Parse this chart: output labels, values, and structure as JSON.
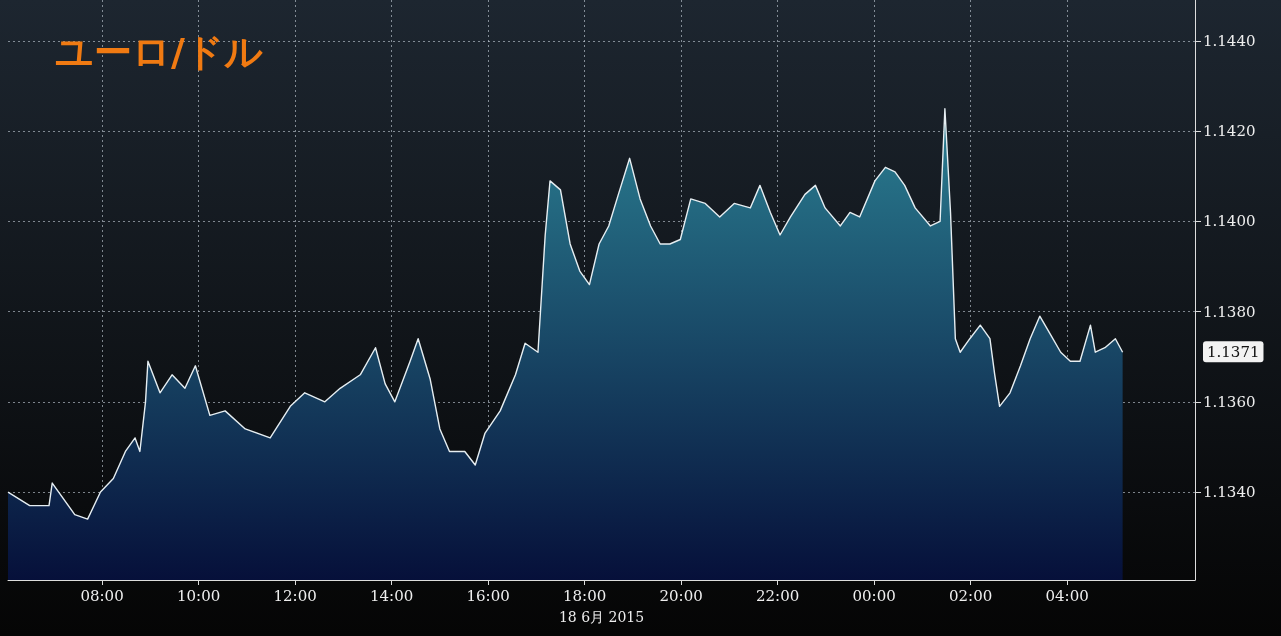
{
  "chart_data": {
    "type": "area",
    "title": "ユーロ/ドル",
    "xlabel": "18 6月 2015",
    "x": [
      "2015-06-17T06:03",
      "2015-06-17T06:30",
      "2015-06-17T06:54",
      "2015-06-17T06:58",
      "2015-06-17T07:26",
      "2015-06-17T07:42",
      "2015-06-17T07:58",
      "2015-06-17T08:14",
      "2015-06-17T08:29",
      "2015-06-17T08:41",
      "2015-06-17T08:47",
      "2015-06-17T08:54",
      "2015-06-17T08:57",
      "2015-06-17T09:12",
      "2015-06-17T09:27",
      "2015-06-17T09:43",
      "2015-06-17T09:56",
      "2015-06-17T10:14",
      "2015-06-17T10:33",
      "2015-06-17T10:58",
      "2015-06-17T11:29",
      "2015-06-17T11:54",
      "2015-06-17T12:12",
      "2015-06-17T12:37",
      "2015-06-17T12:56",
      "2015-06-17T13:21",
      "2015-06-17T13:40",
      "2015-06-17T13:52",
      "2015-06-17T14:04",
      "2015-06-17T14:23",
      "2015-06-17T14:33",
      "2015-06-17T14:48",
      "2015-06-17T15:00",
      "2015-06-17T15:12",
      "2015-06-17T15:31",
      "2015-06-17T15:44",
      "2015-06-17T15:56",
      "2015-06-17T16:15",
      "2015-06-17T16:34",
      "2015-06-17T16:46",
      "2015-06-17T17:02",
      "2015-06-17T17:11",
      "2015-06-17T17:17",
      "2015-06-17T17:30",
      "2015-06-17T17:42",
      "2015-06-17T17:54",
      "2015-06-17T18:06",
      "2015-06-17T18:18",
      "2015-06-17T18:30",
      "2015-06-17T18:42",
      "2015-06-17T18:56",
      "2015-06-17T19:09",
      "2015-06-17T19:22",
      "2015-06-17T19:34",
      "2015-06-17T19:46",
      "2015-06-17T19:59",
      "2015-06-17T20:12",
      "2015-06-17T20:30",
      "2015-06-17T20:48",
      "2015-06-17T21:06",
      "2015-06-17T21:26",
      "2015-06-17T21:38",
      "2015-06-17T21:51",
      "2015-06-17T22:03",
      "2015-06-17T22:16",
      "2015-06-17T22:34",
      "2015-06-17T22:47",
      "2015-06-17T22:59",
      "2015-06-17T23:18",
      "2015-06-17T23:30",
      "2015-06-17T23:42",
      "2015-06-18T00:01",
      "2015-06-18T00:14",
      "2015-06-18T00:26",
      "2015-06-18T00:38",
      "2015-06-18T00:51",
      "2015-06-18T01:10",
      "2015-06-18T01:22",
      "2015-06-18T01:28",
      "2015-06-18T01:35",
      "2015-06-18T01:41",
      "2015-06-18T01:47",
      "2015-06-18T01:59",
      "2015-06-18T02:12",
      "2015-06-18T02:24",
      "2015-06-18T02:30",
      "2015-06-18T02:36",
      "2015-06-18T02:49",
      "2015-06-18T03:02",
      "2015-06-18T03:14",
      "2015-06-18T03:26",
      "2015-06-18T03:39",
      "2015-06-18T03:52",
      "2015-06-18T04:04",
      "2015-06-18T04:16",
      "2015-06-18T04:29",
      "2015-06-18T04:35",
      "2015-06-18T04:47",
      "2015-06-18T05:00",
      "2015-06-18T05:09"
    ],
    "series": [
      {
        "color": "#2b7f92",
        "values": [
          1.134,
          1.1337,
          1.1337,
          1.1342,
          1.1335,
          1.1334,
          1.134,
          1.1343,
          1.1349,
          1.1352,
          1.1349,
          1.136,
          1.1369,
          1.1362,
          1.1366,
          1.1363,
          1.1368,
          1.1357,
          1.1358,
          1.1354,
          1.1352,
          1.1359,
          1.1362,
          1.136,
          1.1363,
          1.1366,
          1.1372,
          1.1364,
          1.136,
          1.1369,
          1.1374,
          1.1365,
          1.1354,
          1.1349,
          1.1349,
          1.1346,
          1.1353,
          1.1358,
          1.1366,
          1.1373,
          1.1371,
          1.1397,
          1.1409,
          1.1407,
          1.1395,
          1.1389,
          1.1386,
          1.1395,
          1.1399,
          1.1406,
          1.1414,
          1.1405,
          1.1399,
          1.1395,
          1.1395,
          1.1396,
          1.1405,
          1.1404,
          1.1401,
          1.1404,
          1.1403,
          1.1408,
          1.1402,
          1.1397,
          1.1401,
          1.1406,
          1.1408,
          1.1403,
          1.1399,
          1.1402,
          1.1401,
          1.1409,
          1.1412,
          1.1411,
          1.1408,
          1.1403,
          1.1399,
          1.14,
          1.1425,
          1.1402,
          1.1374,
          1.1371,
          1.1374,
          1.1377,
          1.1374,
          1.1366,
          1.1359,
          1.1362,
          1.1368,
          1.1374,
          1.1379,
          1.1375,
          1.1371,
          1.1369,
          1.1369,
          1.1377,
          1.1371,
          1.1372,
          1.1374,
          1.1371
        ]
      }
    ],
    "xlim": [
      "2015-06-17T06:03",
      "2015-06-18T06:39"
    ],
    "xticks": [
      {
        "value": "2015-06-17T08:00",
        "label": "08:00"
      },
      {
        "value": "2015-06-17T10:00",
        "label": "10:00"
      },
      {
        "value": "2015-06-17T12:00",
        "label": "12:00"
      },
      {
        "value": "2015-06-17T14:00",
        "label": "14:00"
      },
      {
        "value": "2015-06-17T16:00",
        "label": "16:00"
      },
      {
        "value": "2015-06-17T18:00",
        "label": "18:00"
      },
      {
        "value": "2015-06-17T20:00",
        "label": "20:00"
      },
      {
        "value": "2015-06-17T22:00",
        "label": "22:00"
      },
      {
        "value": "2015-06-18T00:00",
        "label": "00:00"
      },
      {
        "value": "2015-06-18T02:00",
        "label": "02:00"
      },
      {
        "value": "2015-06-18T04:00",
        "label": "04:00"
      }
    ],
    "ylim": [
      1.13205,
      1.14491
    ],
    "yticks": [
      {
        "value": 1.134,
        "label": "1.1340"
      },
      {
        "value": 1.136,
        "label": "1.1360"
      },
      {
        "value": 1.138,
        "label": "1.1380"
      },
      {
        "value": 1.14,
        "label": "1.1400"
      },
      {
        "value": 1.142,
        "label": "1.1420"
      },
      {
        "value": 1.144,
        "label": "1.1440"
      }
    ],
    "annotations": [
      "1.1371"
    ],
    "grid": true
  }
}
